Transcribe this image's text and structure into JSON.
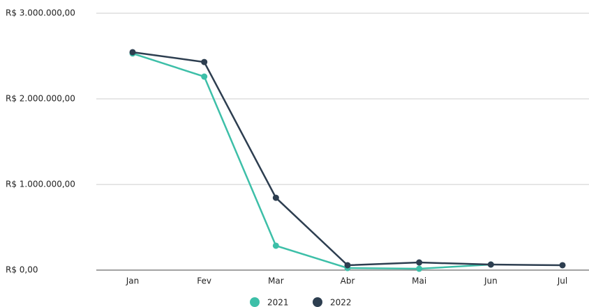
{
  "chart_data": {
    "type": "line",
    "categories": [
      "Jan",
      "Fev",
      "Mar",
      "Abr",
      "Mai",
      "Jun",
      "Jul"
    ],
    "series": [
      {
        "name": "2021",
        "color": "#3dbfa8",
        "values": [
          2530000,
          2260000,
          285000,
          24000,
          16000,
          65000,
          null
        ]
      },
      {
        "name": "2022",
        "color": "#2d3e50",
        "values": [
          2545000,
          2430000,
          845000,
          57000,
          89000,
          65000,
          57000
        ]
      }
    ],
    "ylim": [
      0,
      3000000
    ],
    "yticks": [
      {
        "value": 0,
        "label": "R$ 0,00"
      },
      {
        "value": 1000000,
        "label": "R$ 1.000.000,00"
      },
      {
        "value": 2000000,
        "label": "R$ 2.000.000,00"
      },
      {
        "value": 3000000,
        "label": "R$ 3.000.000,00"
      }
    ],
    "grid": true,
    "legend": "bottom"
  }
}
